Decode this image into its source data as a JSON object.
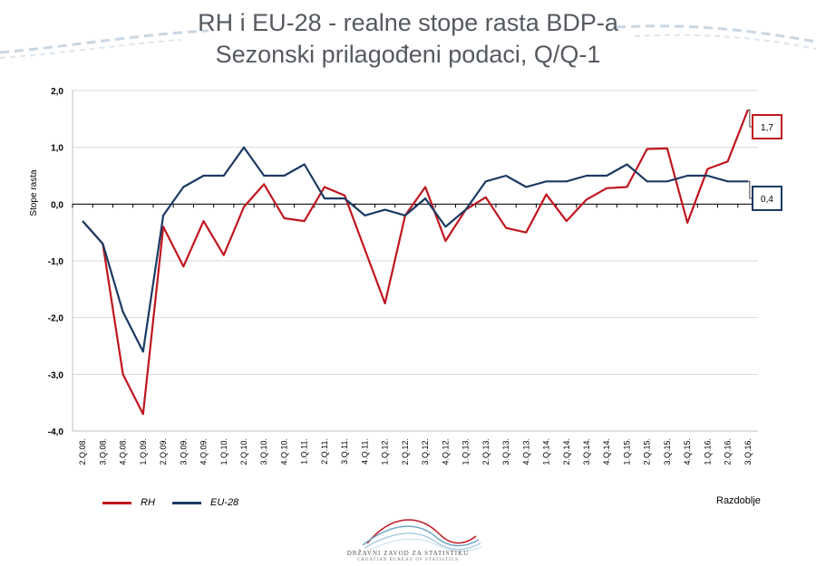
{
  "header": {
    "title_line1": "RH i EU-28 - realne stope rasta BDP-a",
    "title_line2": "Sezonski prilagođeni podaci, Q/Q-1"
  },
  "logo": {
    "name": "DRŽAVNI ZAVOD ZA STATISTIKU",
    "subtitle": "CROATIAN BUREAU OF STATISTICS"
  },
  "chart_data": {
    "type": "line",
    "title": "RH i EU-28 - realne stope rasta BDP-a Sezonski prilagođeni podaci, Q/Q-1",
    "xlabel": "Razdoblje",
    "ylabel": "Stope rasta",
    "ylim": [
      -4.0,
      2.0
    ],
    "yticks": [
      "2,0",
      "1,0",
      "0,0",
      "-1,0",
      "-2,0",
      "-3,0",
      "-4,0"
    ],
    "ytick_values": [
      2,
      1,
      0,
      -1,
      -2,
      -3,
      -4
    ],
    "grid": "horizontal",
    "legend_position": "bottom-left",
    "categories": [
      "2.Q.08.",
      "3.Q.08.",
      "4.Q.08.",
      "1.Q.09.",
      "2.Q.09.",
      "3.Q.09.",
      "4.Q.09.",
      "1.Q.10.",
      "2.Q.10.",
      "3.Q.10.",
      "4.Q.10.",
      "1.Q.11.",
      "2.Q.11.",
      "3.Q.11.",
      "4.Q.11.",
      "1.Q.12.",
      "2.Q.12.",
      "3.Q.12.",
      "4.Q.12.",
      "1.Q.13.",
      "2.Q.13.",
      "3.Q.13.",
      "4.Q.13.",
      "1.Q.14.",
      "2.Q.14.",
      "3.Q.14.",
      "4.Q.14.",
      "1.Q.15.",
      "2.Q.15.",
      "3.Q.15.",
      "4.Q.15.",
      "1.Q.16.",
      "2.Q.16.",
      "3.Q.16."
    ],
    "series": [
      {
        "name": "RH",
        "color": "#c0161e",
        "values": [
          -0.3,
          -0.7,
          -3.0,
          -3.7,
          -0.4,
          -1.1,
          -0.3,
          -0.9,
          -0.05,
          0.35,
          -0.25,
          -0.3,
          0.3,
          0.15,
          -0.8,
          -1.75,
          -0.2,
          0.3,
          -0.65,
          -0.1,
          0.12,
          -0.42,
          -0.5,
          0.17,
          -0.3,
          0.08,
          0.28,
          0.3,
          0.97,
          0.98,
          -0.33,
          0.62,
          0.75,
          1.66
        ],
        "end_label": "1,7"
      },
      {
        "name": "EU-28",
        "color": "#1b3a63",
        "values": [
          -0.3,
          -0.7,
          -1.9,
          -2.6,
          -0.2,
          0.3,
          0.5,
          0.5,
          1.0,
          0.5,
          0.5,
          0.7,
          0.1,
          0.1,
          -0.2,
          -0.1,
          -0.2,
          0.1,
          -0.4,
          -0.1,
          0.4,
          0.5,
          0.3,
          0.4,
          0.4,
          0.5,
          0.5,
          0.7,
          0.4,
          0.4,
          0.5,
          0.5,
          0.4,
          0.4
        ],
        "end_label": "0,4"
      }
    ]
  }
}
